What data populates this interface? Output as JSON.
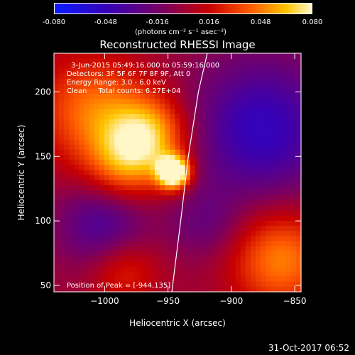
{
  "colorbar": {
    "ticks": [
      "-0.080",
      "-0.048",
      "-0.016",
      "0.016",
      "0.048",
      "0.080"
    ],
    "unit": "(photons cm⁻² s⁻¹ asec⁻²)"
  },
  "chart_data": {
    "type": "heatmap",
    "title": "Reconstructed RHESSI Image",
    "xlabel": "Heliocentric X (arcsec)",
    "ylabel": "Heliocentric Y (arcsec)",
    "xlim": [
      -1040,
      -845
    ],
    "ylim": [
      45,
      230
    ],
    "x_ticks": [
      "−1000",
      "−950",
      "−900",
      "−850"
    ],
    "y_ticks": [
      "50",
      "100",
      "150",
      "200"
    ],
    "x_tick_values": [
      -1000,
      -950,
      -900,
      -850
    ],
    "y_tick_values": [
      50,
      100,
      150,
      200
    ],
    "value_range": [
      -0.08,
      0.08
    ],
    "peak": [
      -944,
      135
    ],
    "limb_curve": [
      [
        -947,
        45
      ],
      [
        -940,
        100
      ],
      [
        -934,
        150
      ],
      [
        -926,
        200
      ],
      [
        -919,
        230
      ]
    ],
    "sources": [
      {
        "x": -945,
        "y": 136,
        "amp": 0.11,
        "sigma": 9
      },
      {
        "x": -965,
        "y": 165,
        "amp": 0.06,
        "sigma": 22
      },
      {
        "x": -1010,
        "y": 185,
        "amp": 0.045,
        "sigma": 30
      },
      {
        "x": -985,
        "y": 140,
        "amp": 0.04,
        "sigma": 22
      },
      {
        "x": -860,
        "y": 68,
        "amp": 0.05,
        "sigma": 28
      },
      {
        "x": -985,
        "y": 60,
        "amp": 0.03,
        "sigma": 20
      },
      {
        "x": -875,
        "y": 170,
        "amp": -0.05,
        "sigma": 40
      },
      {
        "x": -1000,
        "y": 95,
        "amp": -0.04,
        "sigma": 25
      },
      {
        "x": -920,
        "y": 95,
        "amp": -0.02,
        "sigma": 20
      }
    ]
  },
  "annotations": {
    "time": "3-Jun-2015 05:49:16.000 to 05:59:16.000",
    "detectors": "Detectors: 3F 5F 6F 7F 8F 9F, Att 0",
    "energy": "Energy Range: 3.0 - 6.0 keV",
    "clean": "Clean     Total counts: 6.27E+04",
    "peak": "Position of Peak = [-944,135]"
  },
  "footer": {
    "date": "31-Oct-2017 06:52"
  }
}
